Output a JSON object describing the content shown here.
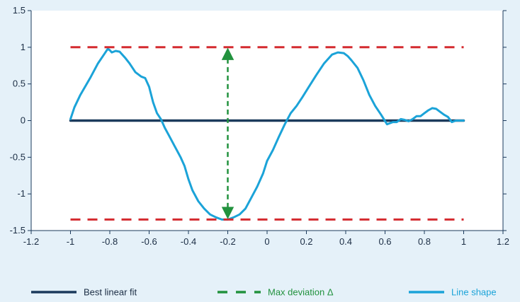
{
  "chart_data": {
    "type": "line",
    "title": "",
    "xlabel": "",
    "ylabel": "",
    "xlim": [
      -1.2,
      1.2
    ],
    "ylim": [
      -1.5,
      1.5
    ],
    "x_ticks": [
      -1.2,
      -1,
      -0.8,
      -0.6,
      -0.4,
      -0.2,
      0,
      0.2,
      0.4,
      0.6,
      0.8,
      1,
      1.2
    ],
    "x_tick_labels": [
      "-1.2",
      "-1",
      "-0.8",
      "-0.6",
      "-0.4",
      "-0.2",
      "0",
      "0.2",
      "0.4",
      "0.6",
      "0.8",
      "1",
      "1.2"
    ],
    "y_ticks": [
      -1.5,
      -1,
      -0.5,
      0,
      0.5,
      1,
      1.5
    ],
    "y_tick_labels": [
      "-1.5",
      "-1",
      "-0.5",
      "0",
      "0.5",
      "1",
      "1.5"
    ],
    "grid": false,
    "legend_position": "bottom",
    "series": [
      {
        "name": "Best linear fit",
        "style": "solid",
        "color": "#1b3a5c",
        "x": [
          -1,
          1
        ],
        "y": [
          0,
          0
        ]
      },
      {
        "name": "Line shape",
        "style": "solid",
        "color": "#1ba3d8",
        "x": [
          -1,
          -0.98,
          -0.95,
          -0.9,
          -0.86,
          -0.83,
          -0.81,
          -0.8,
          -0.79,
          -0.77,
          -0.75,
          -0.72,
          -0.7,
          -0.67,
          -0.64,
          -0.62,
          -0.6,
          -0.58,
          -0.56,
          -0.54,
          -0.52,
          -0.5,
          -0.47,
          -0.44,
          -0.42,
          -0.4,
          -0.38,
          -0.35,
          -0.32,
          -0.29,
          -0.26,
          -0.23,
          -0.2,
          -0.17,
          -0.14,
          -0.11,
          -0.08,
          -0.05,
          -0.02,
          0,
          0.03,
          0.06,
          0.09,
          0.12,
          0.15,
          0.18,
          0.21,
          0.25,
          0.29,
          0.33,
          0.36,
          0.39,
          0.41,
          0.43,
          0.46,
          0.49,
          0.52,
          0.55,
          0.58,
          0.61,
          0.64,
          0.66,
          0.68,
          0.7,
          0.72,
          0.74,
          0.76,
          0.78,
          0.8,
          0.82,
          0.84,
          0.86,
          0.88,
          0.9,
          0.92,
          0.94,
          0.96,
          0.98,
          1
        ],
        "y": [
          0.02,
          0.18,
          0.35,
          0.58,
          0.78,
          0.9,
          0.98,
          0.96,
          0.93,
          0.95,
          0.94,
          0.85,
          0.78,
          0.66,
          0.6,
          0.58,
          0.46,
          0.25,
          0.1,
          0.02,
          -0.1,
          -0.2,
          -0.35,
          -0.5,
          -0.62,
          -0.8,
          -0.95,
          -1.1,
          -1.2,
          -1.28,
          -1.32,
          -1.35,
          -1.35,
          -1.32,
          -1.28,
          -1.2,
          -1.05,
          -0.9,
          -0.72,
          -0.55,
          -0.4,
          -0.22,
          -0.05,
          0.1,
          0.2,
          0.32,
          0.45,
          0.62,
          0.78,
          0.9,
          0.93,
          0.92,
          0.88,
          0.82,
          0.72,
          0.55,
          0.35,
          0.2,
          0.08,
          -0.05,
          -0.02,
          -0.02,
          0.02,
          0.01,
          -0.01,
          0.02,
          0.06,
          0.06,
          0.1,
          0.14,
          0.17,
          0.16,
          0.12,
          0.08,
          0.05,
          -0.02,
          0.0,
          0.0,
          0.0
        ]
      },
      {
        "name": "Max deviation Δ",
        "style": "dashed",
        "color": "#d42a2f",
        "x": [
          -1,
          1
        ],
        "y": [
          1,
          1
        ]
      },
      {
        "name": "",
        "style": "dashed",
        "color": "#d42a2f",
        "x": [
          -1,
          1
        ],
        "y": [
          -1.35,
          -1.35
        ]
      }
    ],
    "annotation_arrow": {
      "x": -0.2,
      "y_from": 0.98,
      "y_to": -1.33,
      "color": "#22923e",
      "style": "dashed-double-arrow"
    },
    "legend": [
      {
        "label": "Best linear fit",
        "color": "#1b3a5c",
        "style": "solid",
        "text_color": "#1b2d44"
      },
      {
        "label": "Max deviation Δ",
        "color": "#22923e",
        "style": "dashed",
        "text_color": "#22923e"
      },
      {
        "label": "Line shape",
        "color": "#1ba3d8",
        "style": "solid",
        "text_color": "#1ba3d8"
      }
    ],
    "colors": {
      "background": "#e5f1f9",
      "plot_background": "#ffffff",
      "axis": "#1b3a5c",
      "fit": "#1b3a5c",
      "deviation_bounds": "#d42a2f",
      "deviation_arrow": "#22923e",
      "shape": "#1ba3d8"
    }
  }
}
